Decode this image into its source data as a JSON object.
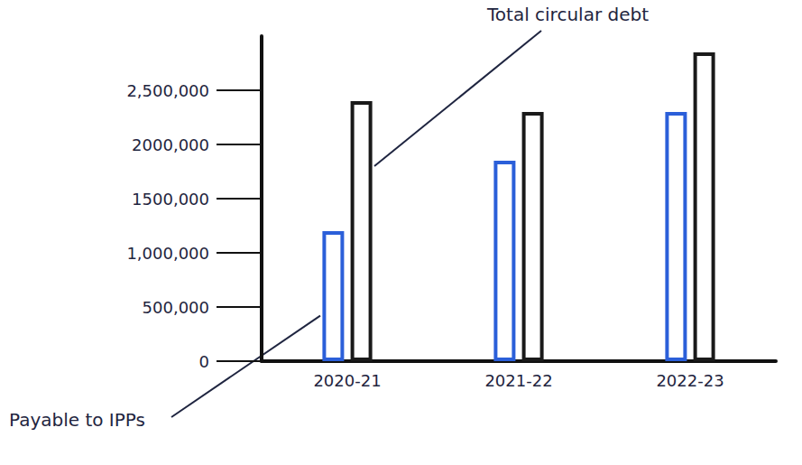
{
  "chart_data": {
    "type": "bar",
    "categories": [
      "2020-21",
      "2021-22",
      "2022-23"
    ],
    "series": [
      {
        "name": "Payable to IPPs",
        "color": "#2b5fd9",
        "values": [
          1200000,
          1850000,
          2300000
        ]
      },
      {
        "name": "Total circular debt",
        "color": "#1a1a1a",
        "values": [
          2400000,
          2300000,
          2850000
        ]
      }
    ],
    "ylim": [
      0,
      3000000
    ],
    "yticks": [
      0,
      {
        "value": 500000,
        "label": "500,000"
      },
      {
        "value": 1000000,
        "label": "1,000,000"
      },
      {
        "value": 1500000,
        "label": "1500,000"
      },
      {
        "value": 2000000,
        "label": "2000,000"
      },
      {
        "value": 2500000,
        "label": "2,500,000"
      }
    ],
    "grid": false
  }
}
